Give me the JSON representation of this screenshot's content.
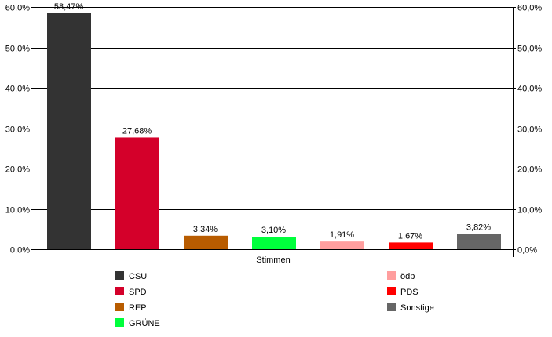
{
  "chart_data": {
    "type": "bar",
    "title": "",
    "xlabel": "Stimmen",
    "ylabel": "",
    "ylim": [
      0,
      60
    ],
    "ytick_values": [
      0,
      10,
      20,
      30,
      40,
      50,
      60
    ],
    "ytick_labels": [
      "0,0%",
      "10,0%",
      "20,0%",
      "30,0%",
      "40,0%",
      "50,0%",
      "60,0%"
    ],
    "grid": true,
    "legend_position": "bottom",
    "categories": [
      "CSU",
      "SPD",
      "REP",
      "GRÜNE",
      "ödp",
      "PDS",
      "Sonstige"
    ],
    "values": [
      58.47,
      27.68,
      3.34,
      3.1,
      1.91,
      1.67,
      3.82
    ],
    "data_labels": [
      "58,47%",
      "27,68%",
      "3,34%",
      "3,10%",
      "1,91%",
      "1,67%",
      "3,82%"
    ],
    "colors": [
      "#333333",
      "#d4002a",
      "#b85c00",
      "#00ff3c",
      "#ff9e9e",
      "#ff0000",
      "#666666"
    ]
  }
}
